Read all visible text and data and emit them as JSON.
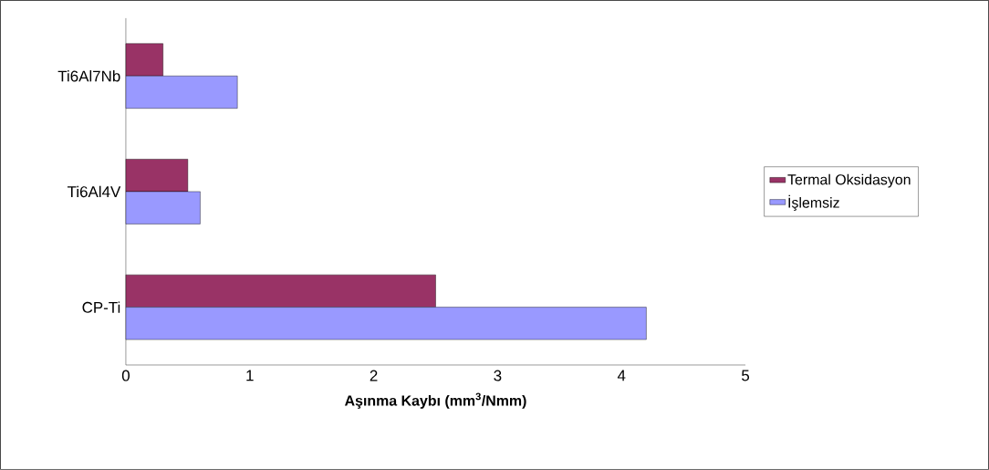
{
  "chart_data": {
    "type": "bar",
    "orientation": "horizontal",
    "categories": [
      "Ti6Al7Nb",
      "Ti6Al4V",
      "CP-Ti"
    ],
    "series": [
      {
        "name": "Termal Oksidasyon",
        "color": "#993366",
        "values": [
          0.3,
          0.5,
          2.5
        ]
      },
      {
        "name": "İşlemsiz",
        "color": "#9999ff",
        "values": [
          0.9,
          0.6,
          4.2
        ]
      }
    ],
    "xlabel": "Aşınma Kaybı (mm$^{3}$/Nmm)",
    "xlim": [
      0,
      5
    ],
    "xticks": [
      0,
      1,
      2,
      3,
      4,
      5
    ],
    "legend": "right"
  }
}
